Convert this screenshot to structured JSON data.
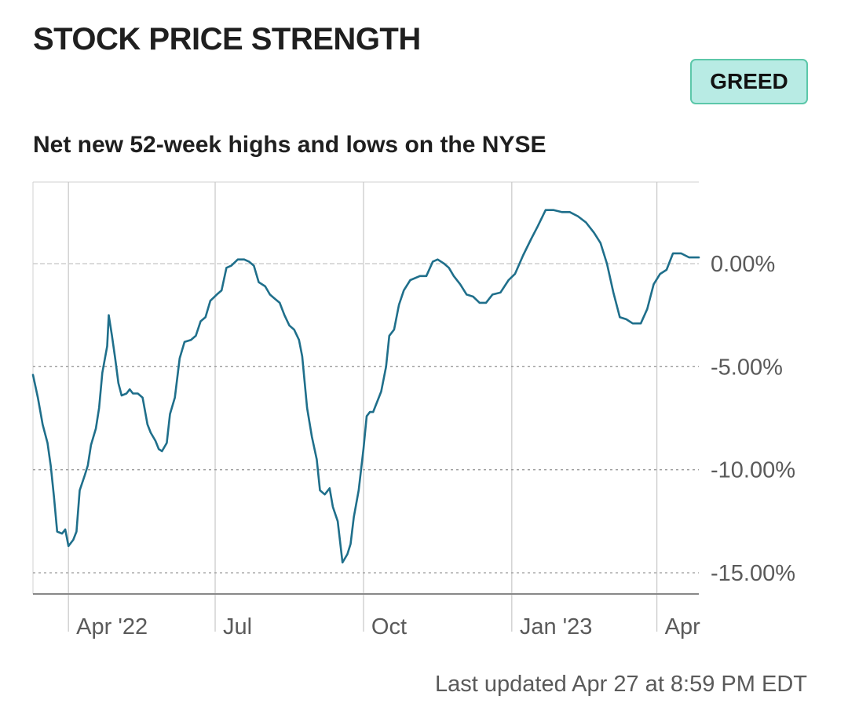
{
  "header": {
    "title": "STOCK PRICE STRENGTH",
    "badge": "GREED",
    "subtitle": "Net new 52-week highs and lows on the NYSE"
  },
  "footer": {
    "updated": "Last updated Apr 27 at 8:59 PM EDT"
  },
  "colors": {
    "line": "#1f6f8b",
    "badge_bg": "#b8ebe4",
    "badge_border": "#5cc7a9"
  },
  "chart_data": {
    "type": "line",
    "title": "Net new 52-week highs and lows on the NYSE",
    "xlabel": "",
    "ylabel": "",
    "x_range": [
      "2022-03-10",
      "2023-04-27"
    ],
    "ylim": [
      -15.8,
      3.9
    ],
    "y_ticks": [
      0,
      -5,
      -10,
      -15
    ],
    "y_tick_labels": [
      "0.00%",
      "-5.00%",
      "-10.00%",
      "-15.00%"
    ],
    "x_ticks": [
      {
        "date": "2022-04-01",
        "label": "Apr '22"
      },
      {
        "date": "2022-07-01",
        "label": "Jul"
      },
      {
        "date": "2022-10-01",
        "label": "Oct"
      },
      {
        "date": "2023-01-01",
        "label": "Jan '23"
      },
      {
        "date": "2023-04-01",
        "label": "Apr"
      }
    ],
    "grid": true,
    "series": [
      {
        "values": [
          {
            "x": "2022-03-10",
            "y": -5.4
          },
          {
            "x": "2022-03-13",
            "y": -6.5
          },
          {
            "x": "2022-03-16",
            "y": -7.8
          },
          {
            "x": "2022-03-19",
            "y": -8.7
          },
          {
            "x": "2022-03-21",
            "y": -9.8
          },
          {
            "x": "2022-03-23",
            "y": -11.3
          },
          {
            "x": "2022-03-25",
            "y": -13.0
          },
          {
            "x": "2022-03-28",
            "y": -13.1
          },
          {
            "x": "2022-03-30",
            "y": -12.9
          },
          {
            "x": "2022-04-01",
            "y": -13.7
          },
          {
            "x": "2022-04-04",
            "y": -13.4
          },
          {
            "x": "2022-04-06",
            "y": -13.0
          },
          {
            "x": "2022-04-08",
            "y": -11.0
          },
          {
            "x": "2022-04-11",
            "y": -10.3
          },
          {
            "x": "2022-04-13",
            "y": -9.8
          },
          {
            "x": "2022-04-15",
            "y": -8.8
          },
          {
            "x": "2022-04-18",
            "y": -8.0
          },
          {
            "x": "2022-04-20",
            "y": -7.0
          },
          {
            "x": "2022-04-22",
            "y": -5.3
          },
          {
            "x": "2022-04-25",
            "y": -4.0
          },
          {
            "x": "2022-04-26",
            "y": -2.5
          },
          {
            "x": "2022-04-28",
            "y": -3.5
          },
          {
            "x": "2022-04-30",
            "y": -4.6
          },
          {
            "x": "2022-05-02",
            "y": -5.8
          },
          {
            "x": "2022-05-04",
            "y": -6.4
          },
          {
            "x": "2022-05-07",
            "y": -6.3
          },
          {
            "x": "2022-05-09",
            "y": -6.1
          },
          {
            "x": "2022-05-11",
            "y": -6.3
          },
          {
            "x": "2022-05-14",
            "y": -6.3
          },
          {
            "x": "2022-05-17",
            "y": -6.5
          },
          {
            "x": "2022-05-20",
            "y": -7.8
          },
          {
            "x": "2022-05-22",
            "y": -8.2
          },
          {
            "x": "2022-05-25",
            "y": -8.6
          },
          {
            "x": "2022-05-27",
            "y": -9.0
          },
          {
            "x": "2022-05-29",
            "y": -9.1
          },
          {
            "x": "2022-06-01",
            "y": -8.7
          },
          {
            "x": "2022-06-03",
            "y": -7.3
          },
          {
            "x": "2022-06-06",
            "y": -6.5
          },
          {
            "x": "2022-06-09",
            "y": -4.6
          },
          {
            "x": "2022-06-12",
            "y": -3.8
          },
          {
            "x": "2022-06-16",
            "y": -3.7
          },
          {
            "x": "2022-06-19",
            "y": -3.5
          },
          {
            "x": "2022-06-22",
            "y": -2.8
          },
          {
            "x": "2022-06-25",
            "y": -2.6
          },
          {
            "x": "2022-06-28",
            "y": -1.8
          },
          {
            "x": "2022-07-02",
            "y": -1.5
          },
          {
            "x": "2022-07-05",
            "y": -1.3
          },
          {
            "x": "2022-07-08",
            "y": -0.2
          },
          {
            "x": "2022-07-11",
            "y": -0.1
          },
          {
            "x": "2022-07-15",
            "y": 0.2
          },
          {
            "x": "2022-07-19",
            "y": 0.2
          },
          {
            "x": "2022-07-22",
            "y": 0.1
          },
          {
            "x": "2022-07-25",
            "y": -0.1
          },
          {
            "x": "2022-07-28",
            "y": -0.9
          },
          {
            "x": "2022-08-01",
            "y": -1.1
          },
          {
            "x": "2022-08-04",
            "y": -1.5
          },
          {
            "x": "2022-08-07",
            "y": -1.7
          },
          {
            "x": "2022-08-10",
            "y": -1.9
          },
          {
            "x": "2022-08-13",
            "y": -2.5
          },
          {
            "x": "2022-08-16",
            "y": -3.0
          },
          {
            "x": "2022-08-19",
            "y": -3.2
          },
          {
            "x": "2022-08-22",
            "y": -3.7
          },
          {
            "x": "2022-08-24",
            "y": -4.5
          },
          {
            "x": "2022-08-27",
            "y": -7.0
          },
          {
            "x": "2022-08-30",
            "y": -8.4
          },
          {
            "x": "2022-09-02",
            "y": -9.5
          },
          {
            "x": "2022-09-04",
            "y": -11.0
          },
          {
            "x": "2022-09-07",
            "y": -11.2
          },
          {
            "x": "2022-09-10",
            "y": -10.9
          },
          {
            "x": "2022-09-12",
            "y": -11.8
          },
          {
            "x": "2022-09-15",
            "y": -12.5
          },
          {
            "x": "2022-09-18",
            "y": -14.5
          },
          {
            "x": "2022-09-21",
            "y": -14.1
          },
          {
            "x": "2022-09-23",
            "y": -13.6
          },
          {
            "x": "2022-09-25",
            "y": -12.3
          },
          {
            "x": "2022-09-28",
            "y": -11.0
          },
          {
            "x": "2022-10-01",
            "y": -9.0
          },
          {
            "x": "2022-10-03",
            "y": -7.4
          },
          {
            "x": "2022-10-05",
            "y": -7.2
          },
          {
            "x": "2022-10-07",
            "y": -7.2
          },
          {
            "x": "2022-10-10",
            "y": -6.6
          },
          {
            "x": "2022-10-12",
            "y": -6.2
          },
          {
            "x": "2022-10-15",
            "y": -5.0
          },
          {
            "x": "2022-10-17",
            "y": -3.5
          },
          {
            "x": "2022-10-20",
            "y": -3.2
          },
          {
            "x": "2022-10-23",
            "y": -2.0
          },
          {
            "x": "2022-10-26",
            "y": -1.3
          },
          {
            "x": "2022-10-30",
            "y": -0.8
          },
          {
            "x": "2022-11-05",
            "y": -0.6
          },
          {
            "x": "2022-11-09",
            "y": -0.6
          },
          {
            "x": "2022-11-13",
            "y": 0.1
          },
          {
            "x": "2022-11-16",
            "y": 0.2
          },
          {
            "x": "2022-11-20",
            "y": 0.0
          },
          {
            "x": "2022-11-23",
            "y": -0.2
          },
          {
            "x": "2022-11-26",
            "y": -0.6
          },
          {
            "x": "2022-11-30",
            "y": -1.0
          },
          {
            "x": "2022-12-04",
            "y": -1.5
          },
          {
            "x": "2022-12-08",
            "y": -1.6
          },
          {
            "x": "2022-12-12",
            "y": -1.9
          },
          {
            "x": "2022-12-16",
            "y": -1.9
          },
          {
            "x": "2022-12-20",
            "y": -1.5
          },
          {
            "x": "2022-12-25",
            "y": -1.4
          },
          {
            "x": "2022-12-30",
            "y": -0.8
          },
          {
            "x": "2023-01-03",
            "y": -0.5
          },
          {
            "x": "2023-01-08",
            "y": 0.4
          },
          {
            "x": "2023-01-13",
            "y": 1.2
          },
          {
            "x": "2023-01-17",
            "y": 1.8
          },
          {
            "x": "2023-01-22",
            "y": 2.6
          },
          {
            "x": "2023-01-27",
            "y": 2.6
          },
          {
            "x": "2023-02-01",
            "y": 2.5
          },
          {
            "x": "2023-02-06",
            "y": 2.5
          },
          {
            "x": "2023-02-11",
            "y": 2.3
          },
          {
            "x": "2023-02-16",
            "y": 2.0
          },
          {
            "x": "2023-02-21",
            "y": 1.5
          },
          {
            "x": "2023-02-25",
            "y": 1.0
          },
          {
            "x": "2023-03-01",
            "y": 0.0
          },
          {
            "x": "2023-03-05",
            "y": -1.4
          },
          {
            "x": "2023-03-09",
            "y": -2.6
          },
          {
            "x": "2023-03-13",
            "y": -2.7
          },
          {
            "x": "2023-03-17",
            "y": -2.9
          },
          {
            "x": "2023-03-22",
            "y": -2.9
          },
          {
            "x": "2023-03-26",
            "y": -2.2
          },
          {
            "x": "2023-03-30",
            "y": -1.0
          },
          {
            "x": "2023-04-03",
            "y": -0.5
          },
          {
            "x": "2023-04-07",
            "y": -0.3
          },
          {
            "x": "2023-04-11",
            "y": 0.5
          },
          {
            "x": "2023-04-16",
            "y": 0.5
          },
          {
            "x": "2023-04-21",
            "y": 0.3
          },
          {
            "x": "2023-04-27",
            "y": 0.3
          }
        ]
      }
    ]
  }
}
